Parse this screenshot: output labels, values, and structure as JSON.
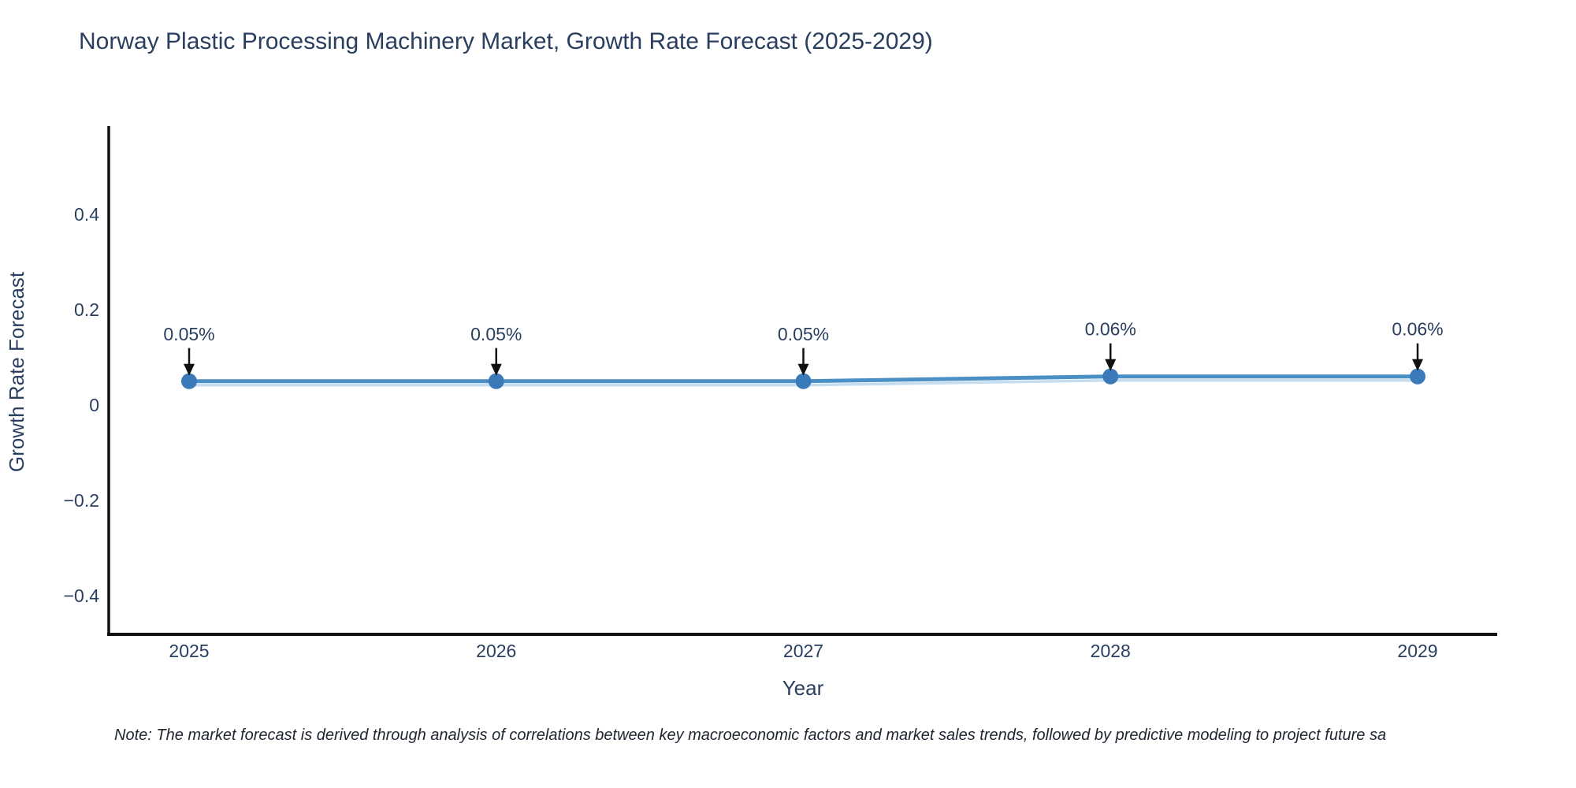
{
  "title": "Norway Plastic Processing Machinery Market, Growth Rate Forecast (2025-2029)",
  "note": "Note: The market forecast is derived through analysis of correlations between key macroeconomic factors and market sales trends, followed by predictive modeling to project future sa",
  "chart_data": {
    "type": "line",
    "title": "Norway Plastic Processing Machinery Market, Growth Rate Forecast (2025-2029)",
    "xlabel": "Year",
    "ylabel": "Growth Rate Forecast",
    "categories": [
      "2025",
      "2026",
      "2027",
      "2028",
      "2029"
    ],
    "series": [
      {
        "name": "Growth Rate Forecast",
        "values": [
          0.05,
          0.05,
          0.05,
          0.06,
          0.06
        ],
        "point_labels": [
          "0.05%",
          "0.05%",
          "0.05%",
          "0.06%",
          "0.06%"
        ]
      }
    ],
    "yticks": [
      0.4,
      0.2,
      0,
      -0.2,
      -0.4
    ],
    "ylim": [
      -0.48,
      0.57
    ],
    "grid": false,
    "legend_position": "none",
    "annotations_style": "value labels with black down-arrows above each point",
    "colors": {
      "line": "#4a90c5",
      "line_under_stripe": "#c6ddf0",
      "marker": "#3b7ab8",
      "arrow": "#111111",
      "axis_line": "#111111",
      "text": "#2a3f5f",
      "note_text": "#1f2430"
    }
  }
}
